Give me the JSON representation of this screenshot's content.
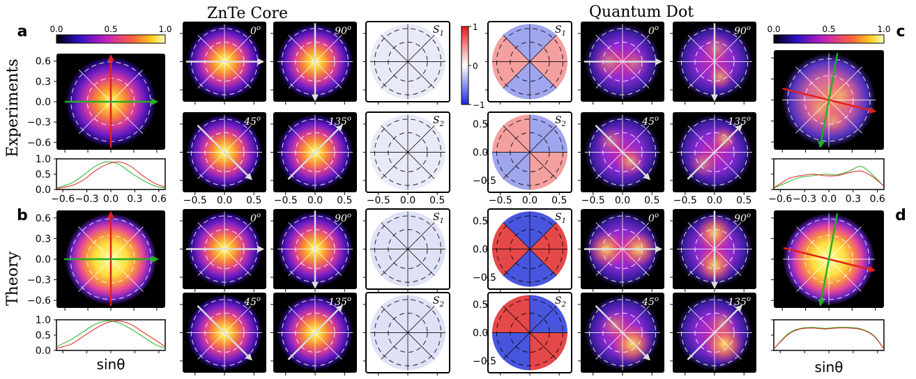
{
  "titles": {
    "znte": "ZnTe Core",
    "quantum_dot": "Quantum Dot"
  },
  "row_labels": {
    "experiments": "Experiments",
    "theory": "Theory"
  },
  "panel_labels": {
    "a": "a",
    "b": "b",
    "c": "c",
    "d": "d"
  },
  "intensity_colorbar": {
    "lim": [
      0,
      1
    ],
    "ticks": [
      {
        "value": 0,
        "label": "0.0"
      },
      {
        "value": 0.5,
        "label": "0.5"
      },
      {
        "value": 1,
        "label": "1.0"
      }
    ]
  },
  "stokes_colorbar": {
    "lim": [
      -1,
      1
    ],
    "ticks": [
      1,
      0,
      {
        "value": -1,
        "label": "−1"
      }
    ]
  },
  "image_axes": {
    "lim": [
      -0.71,
      0.71
    ],
    "side_ticks": [
      0.6,
      0.3,
      {
        "value": 0,
        "label": "0.0"
      },
      {
        "value": -0.3,
        "label": "−0.3"
      },
      {
        "value": -0.6,
        "label": "−0.6"
      }
    ],
    "grid_ticks": [
      {
        "value": -0.5,
        "label": "−0.5"
      },
      {
        "value": 0,
        "label": "0.0"
      },
      0.5
    ]
  },
  "profiles": {
    "xlim": [
      -0.68,
      0.68
    ],
    "ylim": [
      0,
      1
    ],
    "xticks": [
      {
        "value": -0.6,
        "label": "−0.6"
      },
      {
        "value": -0.3,
        "label": "−0.3"
      },
      {
        "value": 0,
        "label": "0.0"
      },
      0.3,
      0.6
    ],
    "yticks": [
      {
        "value": 0,
        "label": "0.0"
      },
      {
        "value": 0.5,
        "label": "0.5"
      },
      {
        "value": 1,
        "label": "1.0"
      }
    ],
    "xlabel": "sinθ",
    "colors": {
      "red": "#e0201c",
      "green": "#22b022"
    },
    "x": [
      -0.68,
      -0.5,
      -0.35,
      -0.2,
      -0.05,
      0.1,
      0.25,
      0.4,
      0.55,
      0.68
    ],
    "panels": {
      "a": {
        "red": [
          0.03,
          0.12,
          0.3,
          0.6,
          0.82,
          0.9,
          0.75,
          0.45,
          0.2,
          0.08
        ],
        "green": [
          0.05,
          0.2,
          0.45,
          0.75,
          0.9,
          0.82,
          0.55,
          0.3,
          0.12,
          0.05
        ]
      },
      "b": {
        "red": [
          0.07,
          0.2,
          0.45,
          0.7,
          0.9,
          0.96,
          0.85,
          0.6,
          0.35,
          0.12
        ],
        "green": [
          0.12,
          0.35,
          0.6,
          0.85,
          0.96,
          0.9,
          0.7,
          0.45,
          0.2,
          0.07
        ]
      },
      "c": {
        "red": [
          0.05,
          0.35,
          0.45,
          0.5,
          0.45,
          0.45,
          0.55,
          0.6,
          0.4,
          0.1
        ],
        "green": [
          0.05,
          0.25,
          0.4,
          0.45,
          0.5,
          0.48,
          0.6,
          0.75,
          0.45,
          0.1
        ]
      },
      "d": {
        "red": [
          0.05,
          0.52,
          0.7,
          0.73,
          0.7,
          0.73,
          0.73,
          0.68,
          0.48,
          0.05
        ],
        "green": [
          0.05,
          0.55,
          0.72,
          0.75,
          0.72,
          0.75,
          0.75,
          0.7,
          0.5,
          0.05
        ]
      }
    }
  },
  "polarizer_labels": [
    {
      "base": "0",
      "sup": "o"
    },
    {
      "base": "90",
      "sup": "o"
    },
    {
      "base": "45",
      "sup": "o"
    },
    {
      "base": "135",
      "sup": "o"
    }
  ],
  "stokes_labels": [
    {
      "base": "S",
      "sub": "1"
    },
    {
      "base": "S",
      "sub": "2"
    }
  ]
}
